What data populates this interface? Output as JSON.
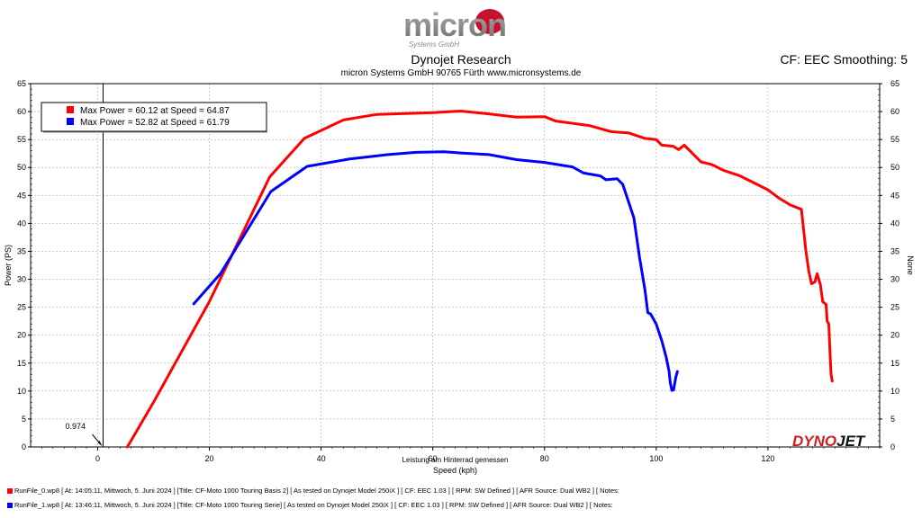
{
  "header": {
    "logo_text": "micron",
    "logo_subtext": "Systems GmbH",
    "title": "Dynojet Research",
    "subtitle": "micron Systems GmbH  90765 Fürth www.micronsystems.de",
    "cf_label": "CF: EEC Smoothing: 5"
  },
  "brand": {
    "text": "DYNOJET",
    "colors": {
      "dyno": "#cc1f1f",
      "jet": "#111111"
    }
  },
  "chart_data": {
    "type": "line",
    "xlabel": "Speed (kph)",
    "xlabel_top": "Leistung am Hinterrad gemessen",
    "ylabel": "Power (PS)",
    "ylabel_right": "None",
    "xlim": [
      -12,
      140
    ],
    "ylim": [
      0,
      65
    ],
    "xticks": [
      0,
      20,
      40,
      60,
      80,
      100,
      120
    ],
    "yticks": [
      0,
      5,
      10,
      15,
      20,
      25,
      30,
      35,
      40,
      45,
      50,
      55,
      60,
      65
    ],
    "cursor": {
      "x": 0.974,
      "label": "0.974"
    },
    "legend": [
      {
        "color": "#ff0000",
        "text": "Max Power = 60.12 at Speed = 64.87"
      },
      {
        "color": "#0000ff",
        "text": "Max Power = 52.82 at Speed = 61.79"
      }
    ],
    "series": [
      {
        "color": "#ff0000",
        "points": [
          [
            5.3,
            0
          ],
          [
            5.8,
            0.8
          ],
          [
            10,
            8
          ],
          [
            20,
            26
          ],
          [
            30.8,
            48.3
          ],
          [
            37,
            55.2
          ],
          [
            44,
            58.5
          ],
          [
            50,
            59.5
          ],
          [
            60,
            59.8
          ],
          [
            65,
            60.1
          ],
          [
            70,
            59.6
          ],
          [
            75,
            59
          ],
          [
            80,
            59.1
          ],
          [
            82,
            58.3
          ],
          [
            88,
            57.5
          ],
          [
            92,
            56.4
          ],
          [
            95,
            56.2
          ],
          [
            98,
            55.2
          ],
          [
            100,
            55
          ],
          [
            101,
            54
          ],
          [
            103,
            53.8
          ],
          [
            104,
            53.2
          ],
          [
            105,
            54
          ],
          [
            106,
            53
          ],
          [
            108,
            51
          ],
          [
            110,
            50.5
          ],
          [
            112,
            49.5
          ],
          [
            115,
            48.5
          ],
          [
            118,
            47
          ],
          [
            120,
            46
          ],
          [
            122,
            44.5
          ],
          [
            124,
            43.3
          ],
          [
            126,
            42.5
          ],
          [
            126.8,
            35
          ],
          [
            127.3,
            31.5
          ],
          [
            127.8,
            29.2
          ],
          [
            128.4,
            29.5
          ],
          [
            128.8,
            31
          ],
          [
            129.4,
            29
          ],
          [
            129.8,
            26
          ],
          [
            130.4,
            25.5
          ],
          [
            130.6,
            22.5
          ],
          [
            130.9,
            22
          ],
          [
            131.1,
            17
          ],
          [
            131.3,
            13
          ],
          [
            131.5,
            11.8
          ]
        ]
      },
      {
        "color": "#0000ff",
        "points": [
          [
            17.2,
            25.6
          ],
          [
            22,
            31
          ],
          [
            31,
            45.7
          ],
          [
            37.5,
            50.2
          ],
          [
            45,
            51.5
          ],
          [
            52,
            52.3
          ],
          [
            57,
            52.7
          ],
          [
            62,
            52.8
          ],
          [
            65,
            52.6
          ],
          [
            70,
            52.3
          ],
          [
            75,
            51.4
          ],
          [
            80,
            50.9
          ],
          [
            85,
            50.1
          ],
          [
            87,
            49
          ],
          [
            90,
            48.5
          ],
          [
            91,
            47.8
          ],
          [
            93,
            48
          ],
          [
            94,
            47
          ],
          [
            95,
            44
          ],
          [
            96,
            41
          ],
          [
            97,
            34
          ],
          [
            98,
            28
          ],
          [
            98.5,
            24
          ],
          [
            99,
            23.8
          ],
          [
            100,
            22
          ],
          [
            101,
            19
          ],
          [
            101.8,
            16
          ],
          [
            102.3,
            13.5
          ],
          [
            102.5,
            11.5
          ],
          [
            102.8,
            10.1
          ],
          [
            103.1,
            10.2
          ],
          [
            103.5,
            12.5
          ],
          [
            103.8,
            13.5
          ]
        ]
      }
    ]
  },
  "footer": {
    "lines": [
      {
        "color": "#ff0000",
        "text": "RunFile_0.wp8 [  At: 14:05:11, Mittwoch, 5. Juni 2024 ] [Title: CF-Moto 1000 Touring Basis 2]  [  As tested on Dynojet Model 250iX ] [  CF:  EEC  1.03  ] [  RPM:  SW  Defined  ] [  AFR  Source:  Dual  WB2  ] [  Notes:"
      },
      {
        "color": "#0000ff",
        "text": "RunFile_1.wp8 [  At: 13:46:11, Mittwoch, 5. Juni 2024 ] [Title: CF-Moto 1000 Touring Serie]  [  As tested on Dynojet Model 250iX ] [  CF:  EEC  1.03  ] [  RPM:  SW  Defined  ] [  AFR  Source:  Dual  WB2  ] [  Notes:"
      }
    ]
  }
}
